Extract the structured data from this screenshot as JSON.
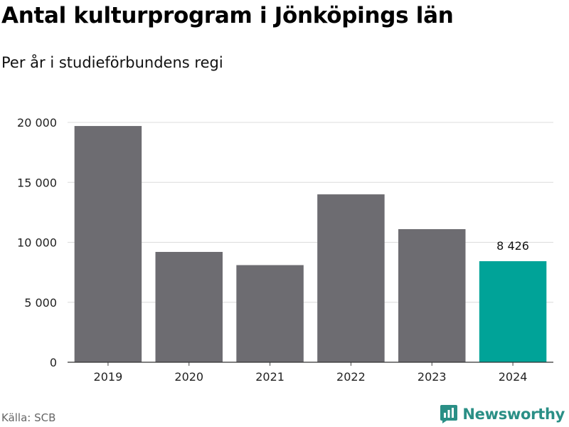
{
  "title": "Antal kulturprogram i Jönköpings län",
  "subtitle": "Per år i studieförbundens regi",
  "source": "Källa: SCB",
  "brand": {
    "name": "Newsworthy",
    "icon": "newsworthy-logo-icon",
    "color": "#2a8f86"
  },
  "chart_data": {
    "type": "bar",
    "categories": [
      "2019",
      "2020",
      "2021",
      "2022",
      "2023",
      "2024"
    ],
    "values": [
      19700,
      9200,
      8100,
      14000,
      11100,
      8426
    ],
    "title": "Antal kulturprogram i Jönköpings län",
    "subtitle": "Per år i studieförbundens regi",
    "xlabel": "",
    "ylabel": "",
    "ylim": [
      0,
      20000
    ],
    "yticks": [
      0,
      5000,
      10000,
      15000,
      20000
    ],
    "ytick_labels": [
      "0",
      "5 000",
      "10 000",
      "15 000",
      "20 000"
    ],
    "grid": true,
    "legend": "none",
    "colors": {
      "default": "#6d6c71",
      "highlight": "#00a398"
    },
    "highlight_index": 5,
    "data_labels": [
      {
        "index": 5,
        "text": "8 426"
      }
    ]
  }
}
